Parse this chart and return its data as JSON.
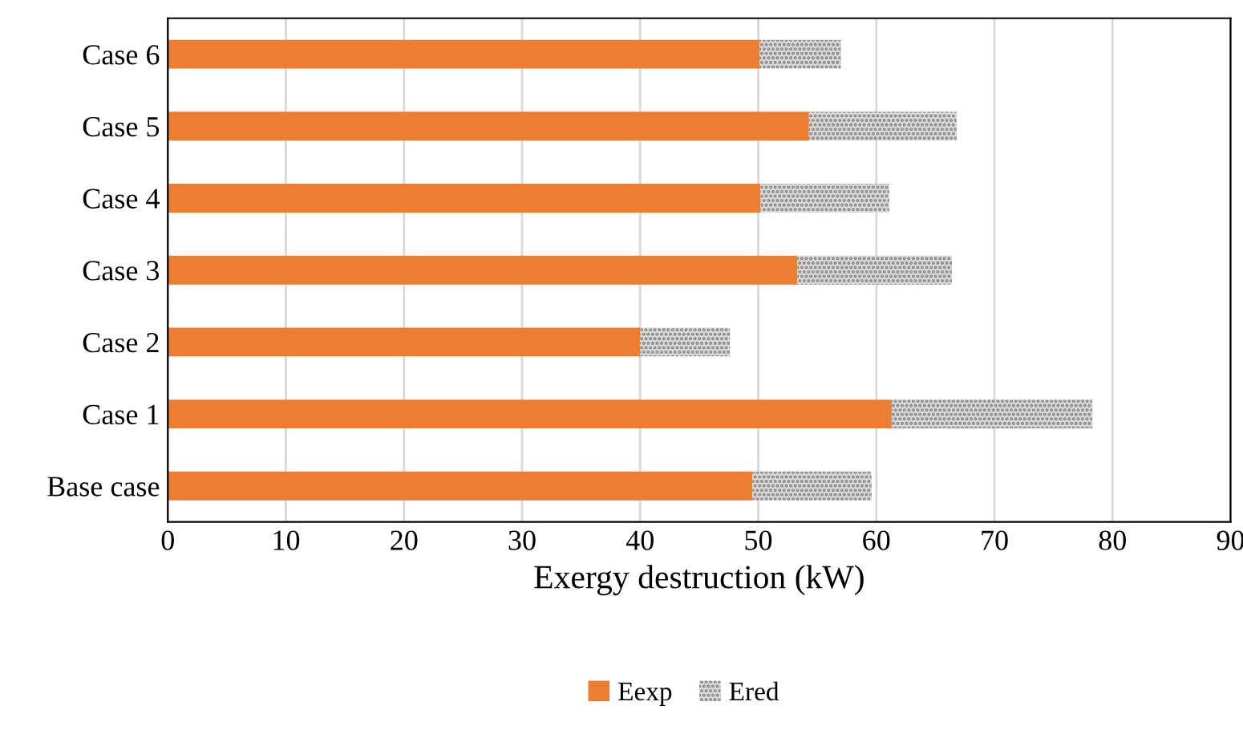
{
  "chart_data": {
    "type": "bar",
    "orientation": "horizontal",
    "stacked": true,
    "categories": [
      "Case 6",
      "Case 5",
      "Case 4",
      "Case 3",
      "Case 2",
      "Case 1",
      "Base case"
    ],
    "series": [
      {
        "name": "Eexp",
        "color": "#ed7d31",
        "values": [
          50.1,
          54.3,
          50.2,
          53.3,
          40.0,
          61.3,
          49.5
        ]
      },
      {
        "name": "Ered",
        "color": "#d9d9d9",
        "values": [
          6.9,
          12.5,
          10.9,
          13.1,
          7.6,
          17.0,
          10.1
        ]
      }
    ],
    "xlabel": "Exergy destruction (kW)",
    "xlim": [
      0,
      90
    ],
    "xticks": [
      0,
      10,
      20,
      30,
      40,
      50,
      60,
      70,
      80,
      90
    ],
    "grid": "x",
    "legend": "bottom"
  }
}
